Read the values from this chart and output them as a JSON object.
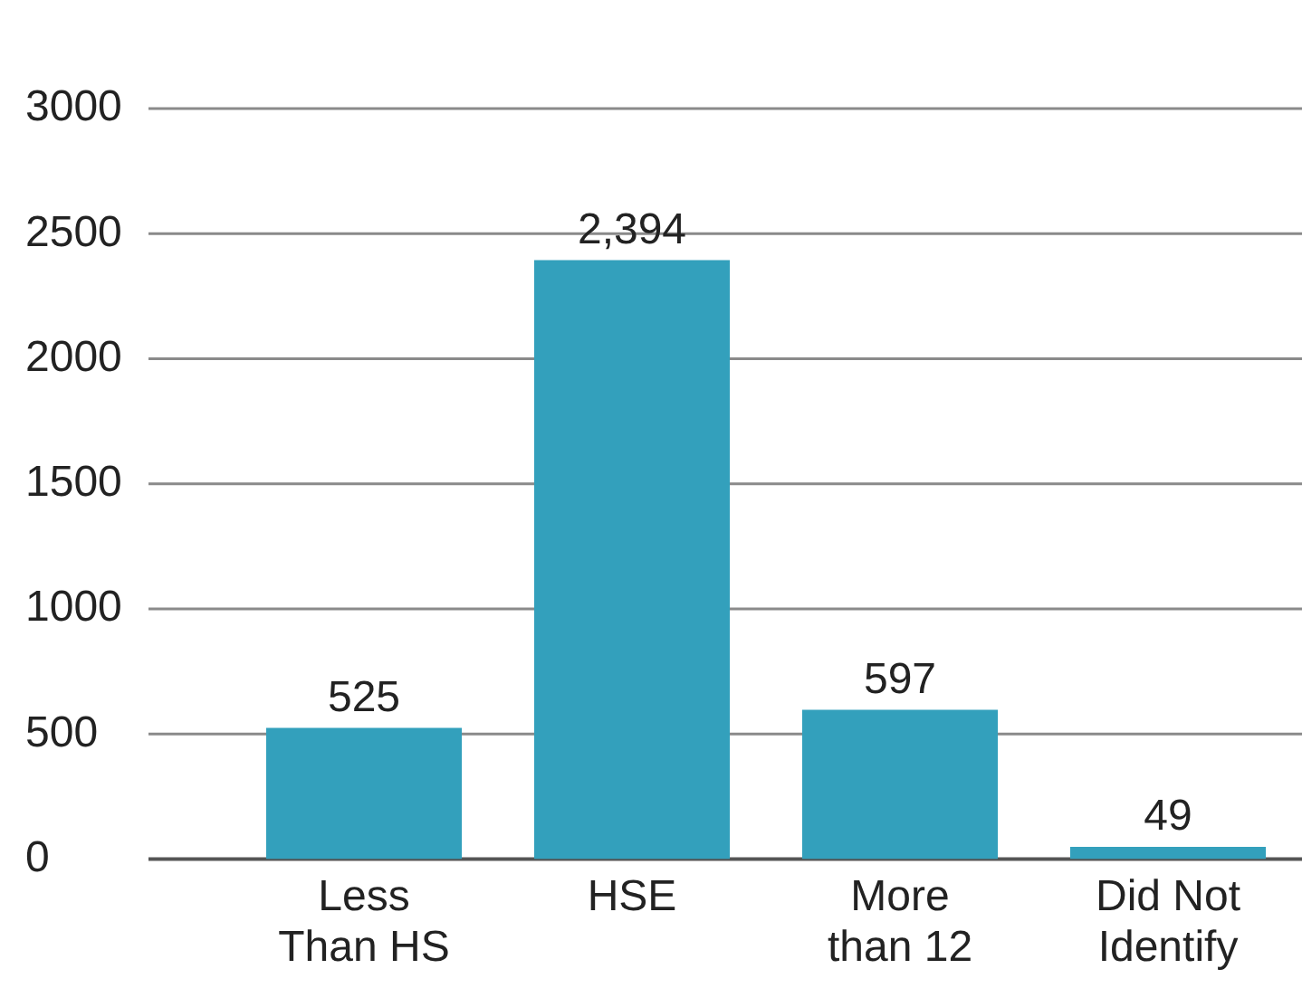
{
  "chart_data": {
    "type": "bar",
    "categories": [
      "Less\nThan HS",
      "HSE",
      "More\nthan 12",
      "Did Not\nIdentify"
    ],
    "values": [
      525,
      2394,
      597,
      49
    ],
    "color": "#33a0bc",
    "value_labels": [
      "525",
      "2,394",
      "597",
      "49"
    ],
    "ylim": [
      0,
      3000
    ],
    "yticks": [
      0,
      500,
      1000,
      1500,
      2000,
      2500,
      3000
    ],
    "grid": "y",
    "legend": false
  }
}
